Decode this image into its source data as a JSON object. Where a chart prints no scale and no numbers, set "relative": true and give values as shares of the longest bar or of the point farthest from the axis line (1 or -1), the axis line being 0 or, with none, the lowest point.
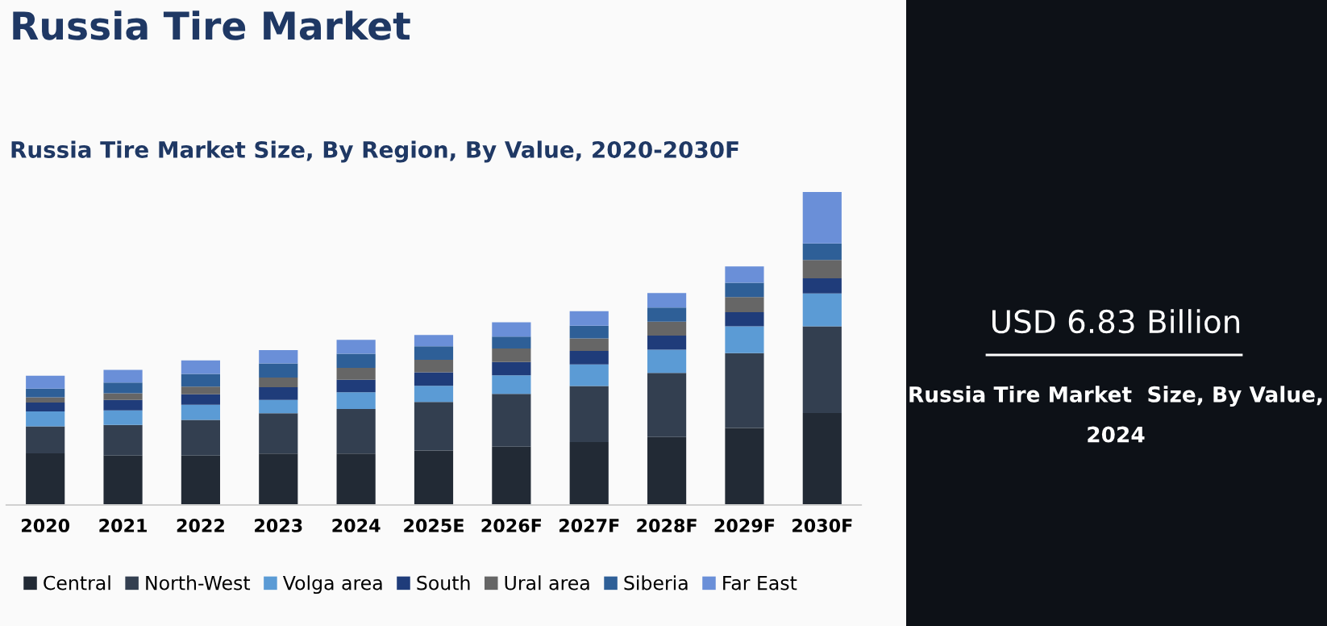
{
  "chart_data": {
    "type": "bar",
    "title": "Russia Tire Market",
    "subtitle": "Russia Tire Market Size, By Region, By Value, 2020-2030F",
    "categories": [
      "2020",
      "2021",
      "2022",
      "2023",
      "2024",
      "2025E",
      "2026F",
      "2027F",
      "2028F",
      "2029F",
      "2030F"
    ],
    "stacked": true,
    "relative": true,
    "legend": "bottom",
    "grid": false,
    "series": [
      {
        "name": "Central",
        "color": "#222a35",
        "values": [
          0.165,
          0.158,
          0.158,
          0.164,
          0.164,
          0.174,
          0.186,
          0.201,
          0.217,
          0.246,
          0.294
        ]
      },
      {
        "name": "North-West",
        "color": "#333f50",
        "values": [
          0.086,
          0.098,
          0.114,
          0.129,
          0.143,
          0.155,
          0.169,
          0.179,
          0.205,
          0.239,
          0.277
        ]
      },
      {
        "name": "Volga area",
        "color": "#5b9bd5",
        "values": [
          0.048,
          0.046,
          0.048,
          0.043,
          0.053,
          0.052,
          0.059,
          0.069,
          0.074,
          0.086,
          0.105
        ]
      },
      {
        "name": "South",
        "color": "#1f3c7a",
        "values": [
          0.028,
          0.034,
          0.034,
          0.04,
          0.04,
          0.043,
          0.043,
          0.043,
          0.045,
          0.045,
          0.048
        ]
      },
      {
        "name": "Ural area",
        "color": "#666666",
        "values": [
          0.017,
          0.021,
          0.024,
          0.031,
          0.038,
          0.04,
          0.043,
          0.04,
          0.045,
          0.048,
          0.059
        ]
      },
      {
        "name": "Siberia",
        "color": "#2e5f97",
        "values": [
          0.028,
          0.034,
          0.041,
          0.045,
          0.045,
          0.043,
          0.038,
          0.041,
          0.045,
          0.046,
          0.053
        ]
      },
      {
        "name": "Far East",
        "color": "#6a8fd8",
        "values": [
          0.041,
          0.041,
          0.043,
          0.043,
          0.045,
          0.036,
          0.046,
          0.046,
          0.046,
          0.052,
          0.164
        ]
      }
    ],
    "annotations": [
      "USD 6.83 Billion",
      "Russia Tire Market  Size, By Value, 2024"
    ]
  }
}
